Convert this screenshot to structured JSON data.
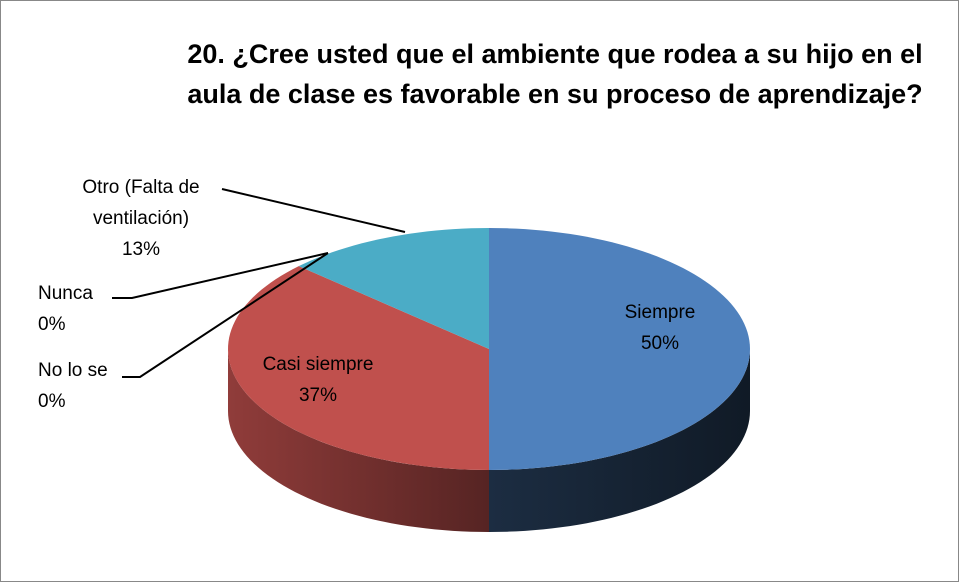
{
  "chart_data": {
    "type": "pie3d",
    "title": "20. ¿Cree usted que el ambiente que rodea a su hijo en el aula de clase es favorable en su proceso de aprendizaje?",
    "categories": [
      "Siempre",
      "Casi siempre",
      "No lo se",
      "Nunca",
      "Otro (Falta de ventilación)"
    ],
    "values": [
      50,
      37,
      0,
      0,
      13
    ],
    "value_labels": [
      "50%",
      "37%",
      "0%",
      "0%",
      "13%"
    ],
    "colors": [
      "#4f81bd",
      "#c0504d",
      "#9bbb59",
      "#8064a2",
      "#4bacc6"
    ]
  }
}
